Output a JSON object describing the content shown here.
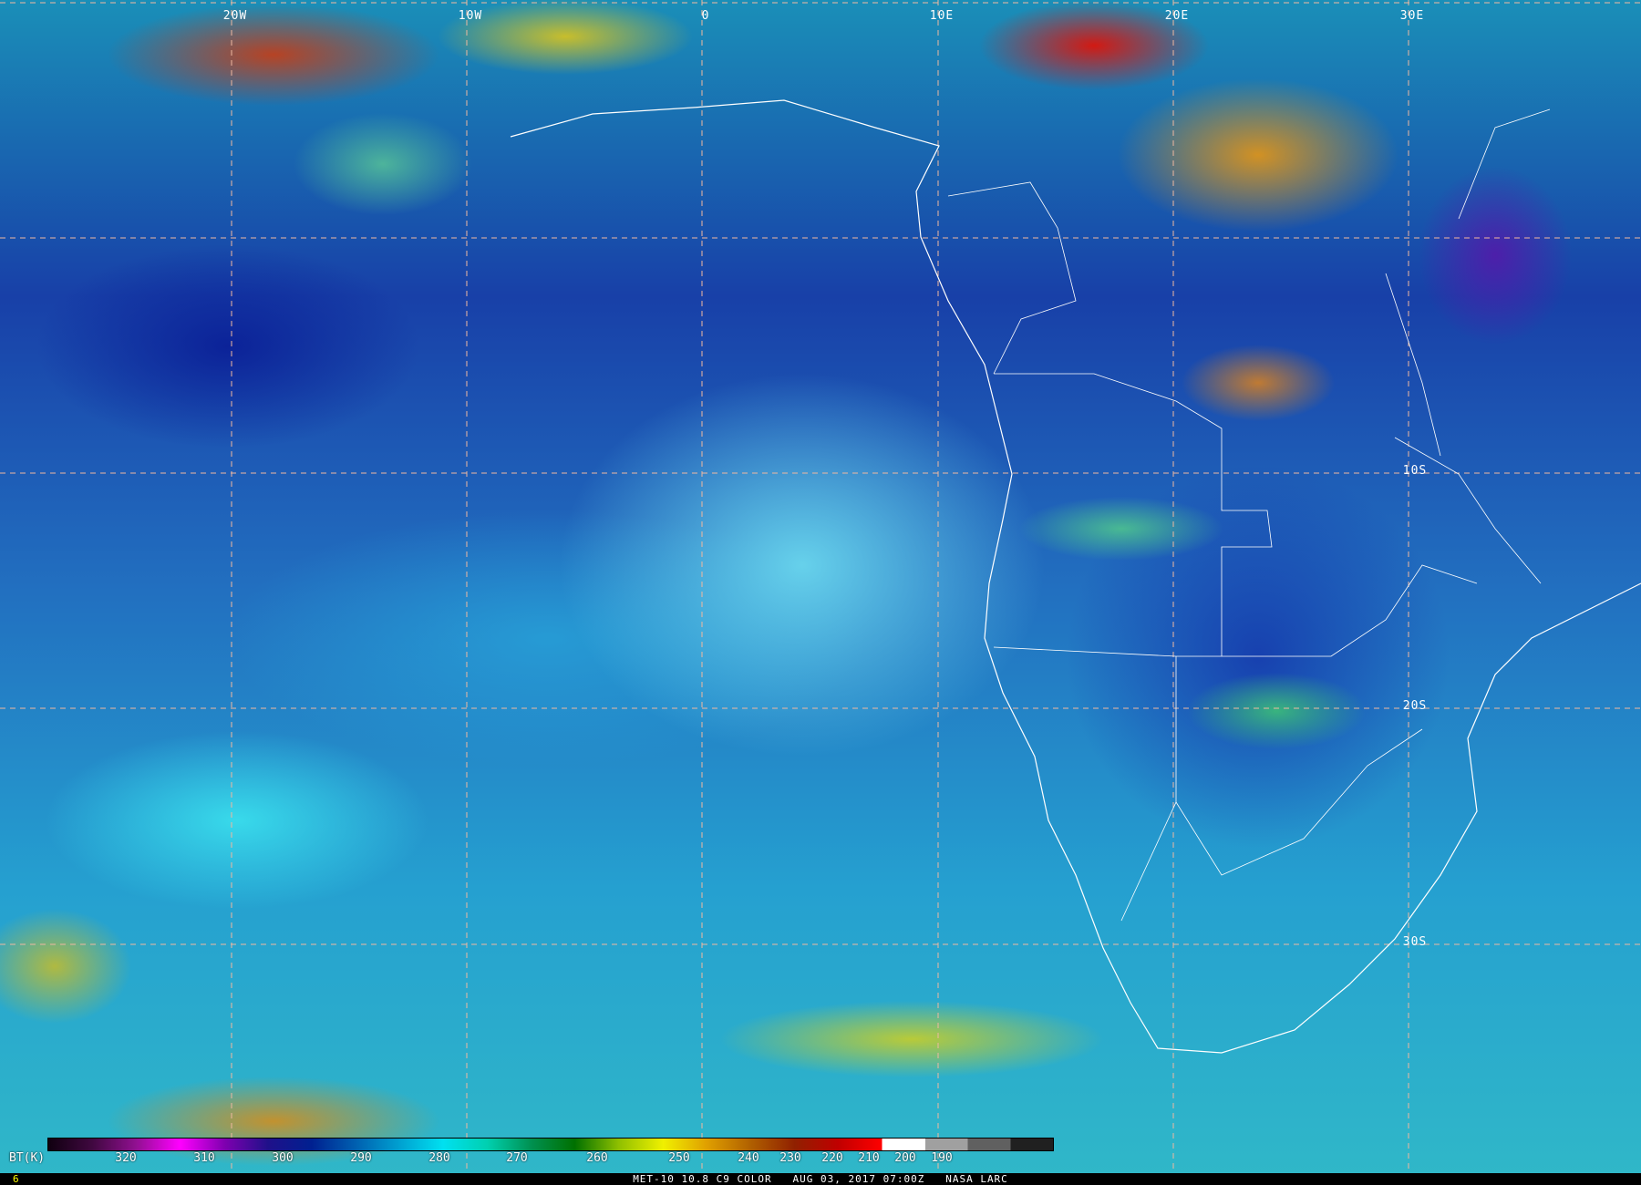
{
  "map": {
    "longitude_labels": [
      "20W",
      "10W",
      "0",
      "10E",
      "20E",
      "30E"
    ],
    "latitude_labels": [
      "10S",
      "20S",
      "30S"
    ],
    "grid_color": "#f0b8a0"
  },
  "colorbar": {
    "unit_label": "BT(K)",
    "tick_labels": [
      "320",
      "310",
      "300",
      "290",
      "280",
      "270",
      "260",
      "250",
      "240",
      "230",
      "220",
      "210",
      "200",
      "190"
    ],
    "colors": [
      "#100010",
      "#400840",
      "#901090",
      "#ff00ff",
      "#8000b0",
      "#20108a",
      "#002090",
      "#0060b0",
      "#00a0d0",
      "#00e0f0",
      "#00d0b0",
      "#009050",
      "#007000",
      "#90c000",
      "#f0f000",
      "#e0a000",
      "#b06000",
      "#902000",
      "#c00000",
      "#ff0000",
      "#ffffff",
      "#a0a0a0",
      "#606060",
      "#202020"
    ]
  },
  "footer": {
    "frame_number": "6",
    "caption": "MET-10 10.8 C9 COLOR   AUG 03, 2017 07:00Z   NASA LARC"
  }
}
